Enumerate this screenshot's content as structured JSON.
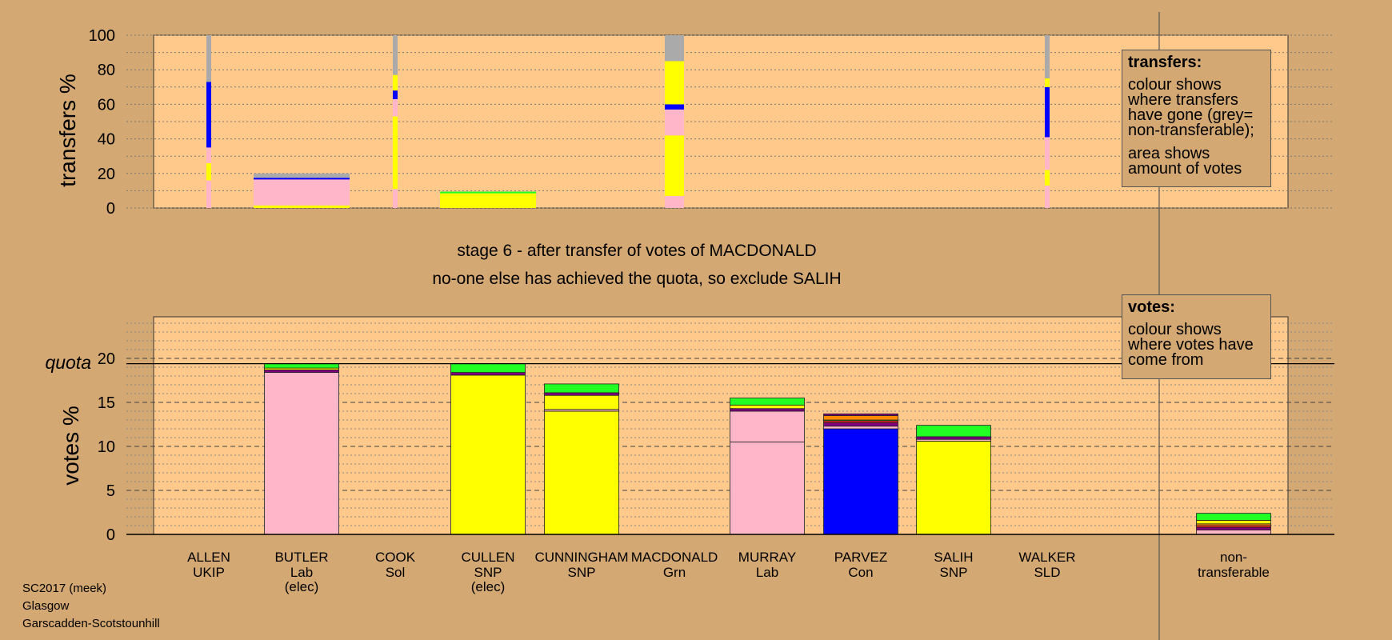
{
  "colors": {
    "page_bg": "#d4a872",
    "plot_bg": "#ffc98c",
    "Lab": "#ffb6c8",
    "SNP": "#ffff00",
    "Con": "#0000ff",
    "Grn": "#22ff22",
    "LD": "#ff8c00",
    "UKIP": "#800080",
    "Sol": "#ff2020",
    "nontransferable": "#aaaaaa"
  },
  "stage_text": {
    "line1": "stage 6 - after transfer of votes of MACDONALD",
    "line2": "no-one else has achieved the quota, so exclude SALIH"
  },
  "legend_transfers": {
    "title": "transfers:",
    "p1": "colour shows where transfers have gone (grey= non-transferable);",
    "p2": "area shows amount of votes"
  },
  "legend_votes": {
    "title": "votes:",
    "p1": "colour shows where votes have come from"
  },
  "footer": {
    "line1": "SC2017 (meek)",
    "line2": "Glasgow",
    "line3": "Garscadden-Scotstounhill"
  },
  "chart_data": [
    {
      "type": "bar",
      "ylabel": "transfers %",
      "ylim": [
        0,
        100
      ],
      "yticks": [
        0,
        20,
        40,
        60,
        80,
        100
      ],
      "grid": true,
      "legend_placement": "top-right",
      "note": "stacked transfer destinations per candidate; bar width proportional to amount of votes",
      "bars": [
        {
          "candidate": "ALLEN",
          "width_share": 0.02,
          "segments": [
            {
              "party": "Lab",
              "from": 0,
              "to": 16
            },
            {
              "party": "SNP",
              "from": 16,
              "to": 26
            },
            {
              "party": "Lab",
              "from": 26,
              "to": 35
            },
            {
              "party": "Con",
              "from": 35,
              "to": 73
            },
            {
              "party": "nontransferable",
              "from": 73,
              "to": 100
            }
          ]
        },
        {
          "candidate": "BUTLER",
          "width_share": 0.4,
          "segments": [
            {
              "party": "SNP",
              "from": 0,
              "to": 1.5
            },
            {
              "party": "Lab",
              "from": 1.5,
              "to": 16.5
            },
            {
              "party": "Con",
              "from": 16.5,
              "to": 17.5
            },
            {
              "party": "nontransferable",
              "from": 17.5,
              "to": 20
            }
          ]
        },
        {
          "candidate": "COOK",
          "width_share": 0.02,
          "segments": [
            {
              "party": "Lab",
              "from": 0,
              "to": 11
            },
            {
              "party": "SNP",
              "from": 11,
              "to": 53
            },
            {
              "party": "Lab",
              "from": 53,
              "to": 63
            },
            {
              "party": "Con",
              "from": 63,
              "to": 68
            },
            {
              "party": "SNP",
              "from": 68,
              "to": 77
            },
            {
              "party": "nontransferable",
              "from": 77,
              "to": 100
            }
          ]
        },
        {
          "candidate": "CULLEN",
          "width_share": 0.4,
          "segments": [
            {
              "party": "SNP",
              "from": 0,
              "to": 8.5
            },
            {
              "party": "Grn",
              "from": 8.5,
              "to": 9.5
            }
          ]
        },
        {
          "candidate": "MACDONALD",
          "width_share": 0.08,
          "segments": [
            {
              "party": "Lab",
              "from": 0,
              "to": 7
            },
            {
              "party": "SNP",
              "from": 7,
              "to": 42
            },
            {
              "party": "Lab",
              "from": 42,
              "to": 57
            },
            {
              "party": "Con",
              "from": 57,
              "to": 60
            },
            {
              "party": "SNP",
              "from": 60,
              "to": 85
            },
            {
              "party": "nontransferable",
              "from": 85,
              "to": 100
            }
          ]
        },
        {
          "candidate": "WALKER",
          "width_share": 0.02,
          "segments": [
            {
              "party": "Lab",
              "from": 0,
              "to": 13
            },
            {
              "party": "SNP",
              "from": 13,
              "to": 22
            },
            {
              "party": "Lab",
              "from": 22,
              "to": 41
            },
            {
              "party": "Con",
              "from": 41,
              "to": 70
            },
            {
              "party": "SNP",
              "from": 70,
              "to": 75
            },
            {
              "party": "nontransferable",
              "from": 75,
              "to": 100
            }
          ]
        }
      ]
    },
    {
      "type": "bar",
      "ylabel": "votes %",
      "ylim": [
        0,
        20
      ],
      "yticks": [
        0,
        5,
        10,
        15,
        20
      ],
      "quota": 19.4,
      "quota_label": "quota",
      "grid": true,
      "legend_placement": "top-right",
      "note": "stacked vote sources per candidate",
      "candidates": [
        {
          "name": "ALLEN",
          "party": "UKIP",
          "elected": "",
          "segments": []
        },
        {
          "name": "BUTLER",
          "party": "Lab",
          "elected": "(elec)",
          "segments": [
            {
              "party": "Lab",
              "value": 18.4
            },
            {
              "party": "UKIP",
              "value": 0.3
            },
            {
              "party": "SNP",
              "value": 0.2
            },
            {
              "party": "Grn",
              "value": 0.5
            }
          ]
        },
        {
          "name": "COOK",
          "party": "Sol",
          "elected": "",
          "segments": []
        },
        {
          "name": "CULLEN",
          "party": "SNP",
          "elected": "(elec)",
          "segments": [
            {
              "party": "SNP",
              "value": 18.1
            },
            {
              "party": "UKIP",
              "value": 0.3
            },
            {
              "party": "Grn",
              "value": 1.0
            }
          ]
        },
        {
          "name": "CUNNINGHAM",
          "party": "SNP",
          "elected": "",
          "segments": [
            {
              "party": "SNP",
              "value": 14.0
            },
            {
              "party": "Lab",
              "value": 0.2
            },
            {
              "party": "SNP",
              "value": 1.6
            },
            {
              "party": "UKIP",
              "value": 0.3
            },
            {
              "party": "Grn",
              "value": 1.0
            }
          ]
        },
        {
          "name": "MACDONALD",
          "party": "Grn",
          "elected": "",
          "segments": []
        },
        {
          "name": "MURRAY",
          "party": "Lab",
          "elected": "",
          "segments": [
            {
              "party": "Lab",
              "value": 10.5
            },
            {
              "party": "Lab",
              "value": 3.5
            },
            {
              "party": "UKIP",
              "value": 0.3
            },
            {
              "party": "SNP",
              "value": 0.4
            },
            {
              "party": "Grn",
              "value": 0.8
            }
          ]
        },
        {
          "name": "PARVEZ",
          "party": "Con",
          "elected": "",
          "segments": [
            {
              "party": "Con",
              "value": 12.0
            },
            {
              "party": "Lab",
              "value": 0.3
            },
            {
              "party": "UKIP",
              "value": 0.4
            },
            {
              "party": "Sol",
              "value": 0.2
            },
            {
              "party": "Grn",
              "value": 0.1
            },
            {
              "party": "LD",
              "value": 0.5
            },
            {
              "party": "UKIP",
              "value": 0.2
            }
          ]
        },
        {
          "name": "SALIH",
          "party": "SNP",
          "elected": "",
          "segments": [
            {
              "party": "SNP",
              "value": 10.6
            },
            {
              "party": "Lab",
              "value": 0.2
            },
            {
              "party": "UKIP",
              "value": 0.3
            },
            {
              "party": "Grn",
              "value": 1.3
            }
          ]
        },
        {
          "name": "WALKER",
          "party": "SLD",
          "elected": "",
          "segments": []
        }
      ],
      "nontransferable": {
        "label_line1": "non-",
        "label_line2": "transferable",
        "segments": [
          {
            "party": "Lab",
            "value": 0.5
          },
          {
            "party": "UKIP",
            "value": 0.3
          },
          {
            "party": "Sol",
            "value": 0.2
          },
          {
            "party": "LD",
            "value": 0.2
          },
          {
            "party": "SNP",
            "value": 0.4
          },
          {
            "party": "Grn",
            "value": 0.8
          }
        ]
      }
    }
  ]
}
